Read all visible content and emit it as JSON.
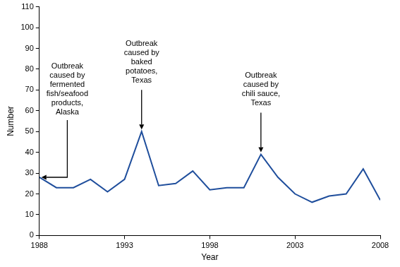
{
  "chart_data": {
    "type": "line",
    "x_label": "Year",
    "y_label": "Number",
    "x": [
      1988,
      1989,
      1990,
      1991,
      1992,
      1993,
      1994,
      1995,
      1996,
      1997,
      1998,
      1999,
      2000,
      2001,
      2002,
      2003,
      2004,
      2005,
      2006,
      2007,
      2008
    ],
    "values": [
      28,
      23,
      23,
      27,
      21,
      27,
      50,
      24,
      25,
      31,
      22,
      23,
      23,
      39,
      28,
      20,
      16,
      19,
      20,
      32,
      17
    ],
    "color": "#1f4e9c",
    "marker": "none",
    "line_style": "solid",
    "grid": false,
    "xlim": [
      1988,
      2008
    ],
    "xticks": [
      1988,
      1993,
      1998,
      2003,
      2008
    ],
    "ylim": [
      0,
      110
    ],
    "yticks": [
      0,
      10,
      20,
      30,
      40,
      50,
      60,
      70,
      80,
      90,
      100,
      110
    ],
    "annotations": [
      {
        "text": "Outbreak\ncaused by\nfermented\nfish/seafood\nproducts,\nAlaska",
        "x": 1988,
        "y": 28
      },
      {
        "text": "Outbreak\ncaused by\nbaked\npotatoes,\nTexas",
        "x": 1994,
        "y": 50
      },
      {
        "text": "Outbreak\ncaused by\nchili sauce,\nTexas",
        "x": 2001,
        "y": 39
      }
    ]
  }
}
